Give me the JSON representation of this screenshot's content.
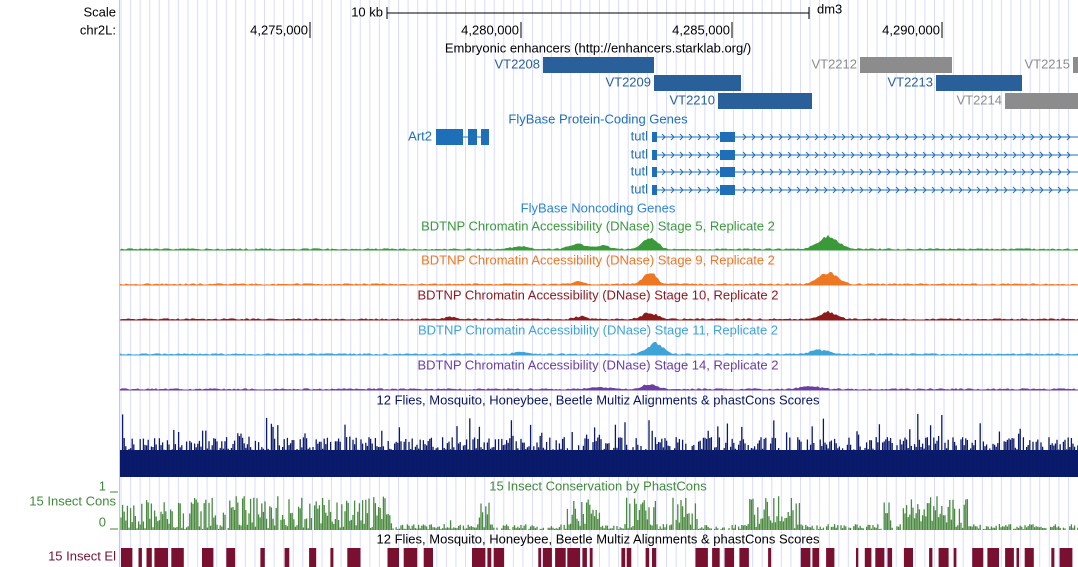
{
  "scale": {
    "label": "Scale",
    "size": "10 kb",
    "assembly": "dm3"
  },
  "position": {
    "chrom": "chr2L:",
    "ticks": [
      "4,275,000",
      "4,280,000",
      "4,285,000",
      "4,290,000"
    ]
  },
  "enhancers": {
    "title": "Embryonic enhancers (http://enhancers.starklab.org/)",
    "features": [
      "VT2208",
      "VT2209",
      "VT2210",
      "VT2212",
      "VT2213",
      "VT2214",
      "VT2215"
    ]
  },
  "protein_genes": {
    "title": "FlyBase Protein-Coding Genes",
    "genes": [
      "Art2",
      "tutl",
      "tutl",
      "tutl",
      "tutl"
    ]
  },
  "noncoding_genes": {
    "title": "FlyBase Noncoding Genes"
  },
  "dnase_tracks": [
    "BDTNP Chromatin Accessibility (DNase) Stage 5, Replicate 2",
    "BDTNP Chromatin Accessibility (DNase) Stage 9, Replicate 2",
    "BDTNP Chromatin Accessibility (DNase) Stage 10, Replicate 2",
    "BDTNP Chromatin Accessibility (DNase) Stage 11, Replicate 2",
    "BDTNP Chromatin Accessibility (DNase) Stage 14, Replicate 2"
  ],
  "multiz": {
    "title": "12 Flies, Mosquito, Honeybee, Beetle Multiz Alignments & phastCons Scores"
  },
  "conservation": {
    "title": "15 Insect Conservation by PhastCons",
    "label": "15 Insect Cons",
    "max": 1,
    "min": 0
  },
  "elements": {
    "title": "12 Flies, Mosquito, Honeybee, Beetle Multiz Alignments & phastCons Scores",
    "label": "15 Insect El"
  }
}
